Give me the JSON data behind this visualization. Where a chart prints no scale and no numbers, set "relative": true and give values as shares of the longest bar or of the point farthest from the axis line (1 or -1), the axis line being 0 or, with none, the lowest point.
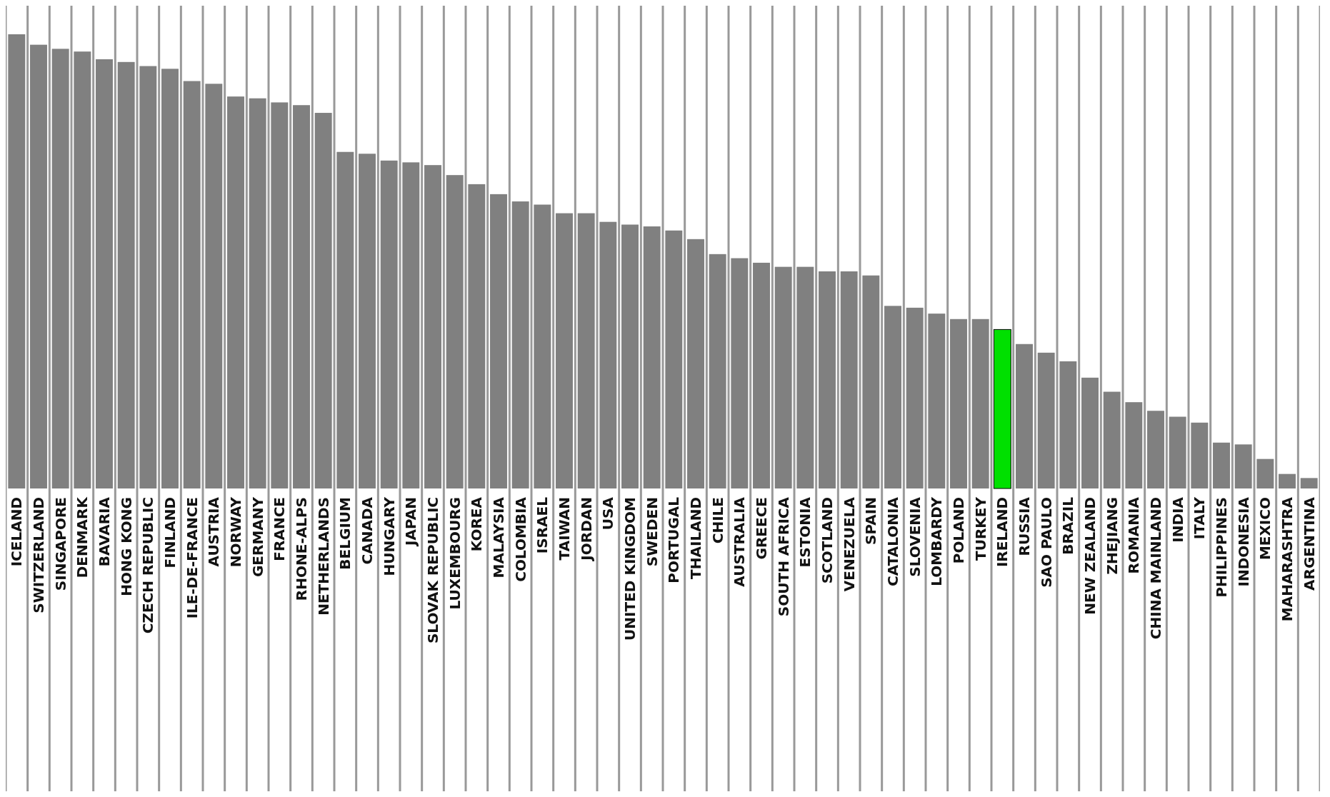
{
  "chart_data": {
    "type": "bar",
    "relative": true,
    "grid": "x",
    "categories": [
      "ICELAND",
      "SWITZERLAND",
      "SINGAPORE",
      "DENMARK",
      "BAVARIA",
      "HONG KONG",
      "CZECH REPUBLIC",
      "FINLAND",
      "ILE-DE-FRANCE",
      "AUSTRIA",
      "NORWAY",
      "GERMANY",
      "FRANCE",
      "RHONE-ALPS",
      "NETHERLANDS",
      "BELGIUM",
      "CANADA",
      "HUNGARY",
      "JAPAN",
      "SLOVAK REPUBLIC",
      "LUXEMBOURG",
      "KOREA",
      "MALAYSIA",
      "COLOMBIA",
      "ISRAEL",
      "TAIWAN",
      "JORDAN",
      "USA",
      "UNITED KINGDOM",
      "SWEDEN",
      "PORTUGAL",
      "THAILAND",
      "CHILE",
      "AUSTRALIA",
      "GREECE",
      "SOUTH AFRICA",
      "ESTONIA",
      "SCOTLAND",
      "VENEZUELA",
      "SPAIN",
      "CATALONIA",
      "SLOVENIA",
      "LOMBARDY",
      "POLAND",
      "TURKEY",
      "IRELAND",
      "RUSSIA",
      "SAO PAULO",
      "BRAZIL",
      "NEW ZEALAND",
      "ZHEJIANG",
      "ROMANIA",
      "CHINA MAINLAND",
      "INDIA",
      "ITALY",
      "PHILIPPINES",
      "INDONESIA",
      "MEXICO",
      "MAHARASHTRA",
      "ARGENTINA"
    ],
    "values": [
      1.0,
      0.977,
      0.968,
      0.962,
      0.945,
      0.939,
      0.93,
      0.924,
      0.897,
      0.891,
      0.863,
      0.859,
      0.85,
      0.844,
      0.827,
      0.741,
      0.737,
      0.722,
      0.718,
      0.712,
      0.69,
      0.67,
      0.648,
      0.632,
      0.625,
      0.606,
      0.606,
      0.587,
      0.581,
      0.577,
      0.568,
      0.549,
      0.516,
      0.507,
      0.497,
      0.488,
      0.488,
      0.478,
      0.478,
      0.469,
      0.402,
      0.398,
      0.385,
      0.373,
      0.373,
      0.35,
      0.318,
      0.299,
      0.28,
      0.244,
      0.213,
      0.19,
      0.171,
      0.158,
      0.145,
      0.101,
      0.097,
      0.065,
      0.032,
      0.023
    ],
    "colors": [
      "#808080",
      "#808080",
      "#808080",
      "#808080",
      "#808080",
      "#808080",
      "#808080",
      "#808080",
      "#808080",
      "#808080",
      "#808080",
      "#808080",
      "#808080",
      "#808080",
      "#808080",
      "#808080",
      "#808080",
      "#808080",
      "#808080",
      "#808080",
      "#808080",
      "#808080",
      "#808080",
      "#808080",
      "#808080",
      "#808080",
      "#808080",
      "#808080",
      "#808080",
      "#808080",
      "#808080",
      "#808080",
      "#808080",
      "#808080",
      "#808080",
      "#808080",
      "#808080",
      "#808080",
      "#808080",
      "#808080",
      "#808080",
      "#808080",
      "#808080",
      "#808080",
      "#808080",
      "#00e000",
      "#808080",
      "#808080",
      "#808080",
      "#808080",
      "#808080",
      "#808080",
      "#808080",
      "#808080",
      "#808080",
      "#808080",
      "#808080",
      "#808080",
      "#808080",
      "#808080"
    ]
  }
}
